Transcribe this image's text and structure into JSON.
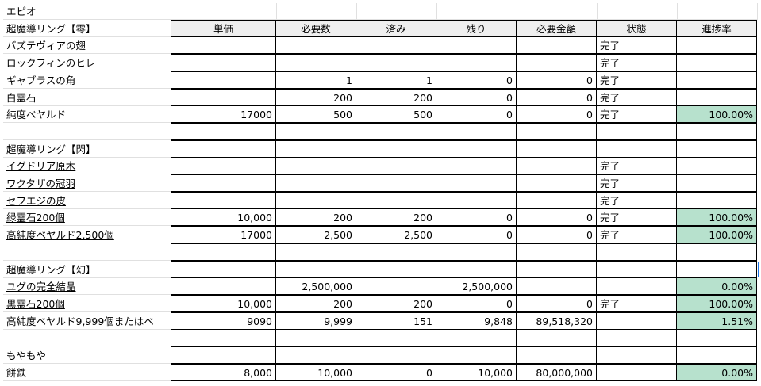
{
  "colors": {
    "progress_fill": "#b7e1cd",
    "header_fill": "#efefef",
    "selection": "#1a73e8"
  },
  "headers": [
    "単価",
    "必要数",
    "済み",
    "残り",
    "必要金額",
    "状態",
    "進捗率"
  ],
  "rows": [
    {
      "label": "エピオ",
      "kind": "plain"
    },
    {
      "label": "超魔導リング【零】",
      "kind": "header"
    },
    {
      "label": "バズテヴィアの翅",
      "kind": "item",
      "values": [
        "",
        "",
        "",
        "",
        "",
        "完了",
        ""
      ]
    },
    {
      "label": "ロックフィンのヒレ",
      "kind": "item",
      "values": [
        "",
        "",
        "",
        "",
        "",
        "完了",
        ""
      ]
    },
    {
      "label": "ギャブラスの角",
      "kind": "item",
      "values": [
        "",
        "1",
        "1",
        "0",
        "0",
        "完了",
        ""
      ]
    },
    {
      "label": "白霊石",
      "kind": "item",
      "values": [
        "",
        "200",
        "200",
        "0",
        "0",
        "完了",
        ""
      ]
    },
    {
      "label": "純度ベヤルド",
      "kind": "item",
      "values": [
        "17000",
        "500",
        "500",
        "0",
        "0",
        "完了",
        "100.00%"
      ]
    },
    {
      "label": "",
      "kind": "item",
      "values": [
        "",
        "",
        "",
        "",
        "",
        "",
        ""
      ]
    },
    {
      "label": "超魔導リング【閃】",
      "kind": "item",
      "values": [
        "",
        "",
        "",
        "",
        "",
        "",
        ""
      ]
    },
    {
      "label": "イグドリア原木",
      "kind": "item",
      "underline": true,
      "values": [
        "",
        "",
        "",
        "",
        "",
        "完了",
        ""
      ]
    },
    {
      "label": "ワクタザの冠羽",
      "kind": "item",
      "underline": true,
      "values": [
        "",
        "",
        "",
        "",
        "",
        "完了",
        ""
      ]
    },
    {
      "label": "セフエジの皮",
      "kind": "item",
      "underline": true,
      "values": [
        "",
        "",
        "",
        "",
        "",
        "完了",
        ""
      ]
    },
    {
      "label": "緑霊石200個",
      "kind": "item",
      "underline": true,
      "values": [
        "10,000",
        "200",
        "200",
        "0",
        "0",
        "完了",
        "100.00%"
      ]
    },
    {
      "label": "高純度ベヤルド2,500個",
      "kind": "item",
      "underline": true,
      "values": [
        "17000",
        "2,500",
        "2,500",
        "0",
        "0",
        "完了",
        "100.00%"
      ]
    },
    {
      "label": "",
      "kind": "item",
      "values": [
        "",
        "",
        "",
        "",
        "",
        "",
        ""
      ]
    },
    {
      "label": "超魔導リング【幻】",
      "kind": "item",
      "values": [
        "",
        "",
        "",
        "",
        "",
        "",
        ""
      ]
    },
    {
      "label": "ユグの完全結晶",
      "kind": "item",
      "underline": true,
      "values": [
        "",
        "2,500,000",
        "",
        "2,500,000",
        "",
        "",
        "0.00%"
      ]
    },
    {
      "label": "黒霊石200個",
      "kind": "item",
      "underline": true,
      "values": [
        "10,000",
        "200",
        "200",
        "0",
        "0",
        "完了",
        "100.00%"
      ]
    },
    {
      "label": "高純度ベヤルド9,999個またはベ",
      "kind": "item",
      "values": [
        "9090",
        "9,999",
        "151",
        "9,848",
        "89,518,320",
        "",
        "1.51%"
      ]
    },
    {
      "label": "",
      "kind": "item",
      "values": [
        "",
        "",
        "",
        "",
        "",
        "",
        ""
      ]
    },
    {
      "label": "もやもや",
      "kind": "item",
      "values": [
        "",
        "",
        "",
        "",
        "",
        "",
        ""
      ]
    },
    {
      "label": "餅鉄",
      "kind": "item",
      "values": [
        "8,000",
        "10,000",
        "0",
        "10,000",
        "80,000,000",
        "",
        "0.00%"
      ]
    }
  ]
}
